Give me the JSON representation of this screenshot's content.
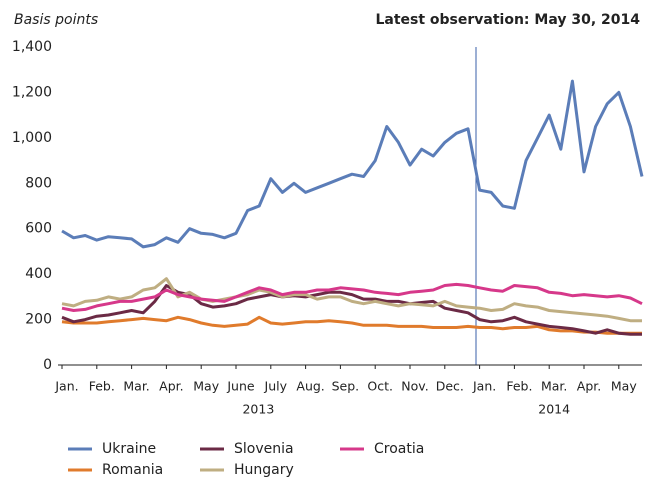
{
  "chart_data": {
    "type": "line",
    "y_unit_label": "Basis points",
    "note": "Latest observation: May 30, 2014",
    "categories": [
      "Jan.",
      null,
      null,
      "Feb.",
      null,
      null,
      "Mar.",
      null,
      null,
      "Apr.",
      null,
      null,
      "May",
      null,
      null,
      "June",
      null,
      null,
      "July",
      null,
      null,
      "Aug.",
      null,
      null,
      "Sep.",
      null,
      null,
      "Oct.",
      null,
      null,
      "Nov.",
      null,
      null,
      "Dec.",
      null,
      null,
      "Jan.",
      null,
      null,
      "Feb.",
      null,
      null,
      "Mar.",
      null,
      null,
      "Apr.",
      null,
      null,
      "May",
      null,
      null
    ],
    "year_labels": [
      "2013",
      "2014"
    ],
    "ylim": [
      0,
      1400
    ],
    "yticks": [
      0,
      200,
      400,
      600,
      800,
      {
        "value": 1000,
        "label": "1,000"
      },
      {
        "value": 1200,
        "label": "1,200"
      },
      {
        "value": 1400,
        "label": "1,400"
      }
    ],
    "series": [
      {
        "name": "Ukraine",
        "color": "#5b7db8",
        "values": [
          590,
          560,
          570,
          550,
          565,
          560,
          555,
          520,
          530,
          560,
          540,
          600,
          580,
          575,
          560,
          580,
          680,
          700,
          820,
          760,
          800,
          760,
          780,
          800,
          820,
          840,
          830,
          900,
          1050,
          980,
          880,
          950,
          920,
          980,
          1020,
          1040,
          770,
          760,
          700,
          690,
          900,
          1000,
          1100,
          950,
          1250,
          850,
          1050,
          1150,
          1200,
          1050,
          830
        ]
      },
      {
        "name": "Romania",
        "color": "#e07b2c",
        "values": [
          190,
          185,
          185,
          185,
          190,
          195,
          200,
          205,
          200,
          195,
          210,
          200,
          185,
          175,
          170,
          175,
          180,
          210,
          185,
          180,
          185,
          190,
          190,
          195,
          190,
          185,
          175,
          175,
          175,
          170,
          170,
          170,
          165,
          165,
          165,
          170,
          165,
          165,
          160,
          165,
          165,
          170,
          155,
          150,
          150,
          145,
          145,
          140,
          140,
          140,
          140
        ]
      },
      {
        "name": "Slovenia",
        "color": "#6b2a45",
        "values": [
          210,
          190,
          200,
          215,
          220,
          230,
          240,
          230,
          280,
          350,
          320,
          310,
          270,
          255,
          260,
          270,
          290,
          300,
          310,
          300,
          305,
          300,
          310,
          320,
          320,
          310,
          290,
          290,
          280,
          280,
          270,
          275,
          280,
          250,
          240,
          230,
          200,
          190,
          195,
          210,
          190,
          180,
          170,
          165,
          160,
          150,
          140,
          155,
          140,
          135,
          135
        ]
      },
      {
        "name": "Hungary",
        "color": "#bfae82",
        "values": [
          270,
          260,
          280,
          285,
          300,
          290,
          300,
          330,
          340,
          380,
          300,
          320,
          290,
          280,
          290,
          300,
          310,
          330,
          320,
          300,
          310,
          310,
          290,
          300,
          300,
          280,
          270,
          280,
          270,
          260,
          270,
          265,
          260,
          280,
          260,
          255,
          250,
          240,
          245,
          270,
          260,
          255,
          240,
          235,
          230,
          225,
          220,
          215,
          205,
          195,
          195
        ]
      },
      {
        "name": "Croatia",
        "color": "#d6388a",
        "values": [
          250,
          240,
          245,
          260,
          270,
          280,
          280,
          290,
          300,
          330,
          310,
          300,
          290,
          285,
          280,
          300,
          320,
          340,
          330,
          310,
          320,
          320,
          330,
          330,
          340,
          335,
          330,
          320,
          315,
          310,
          320,
          325,
          330,
          350,
          355,
          350,
          340,
          330,
          325,
          350,
          345,
          340,
          320,
          315,
          305,
          310,
          305,
          300,
          305,
          295,
          270
        ]
      }
    ]
  }
}
